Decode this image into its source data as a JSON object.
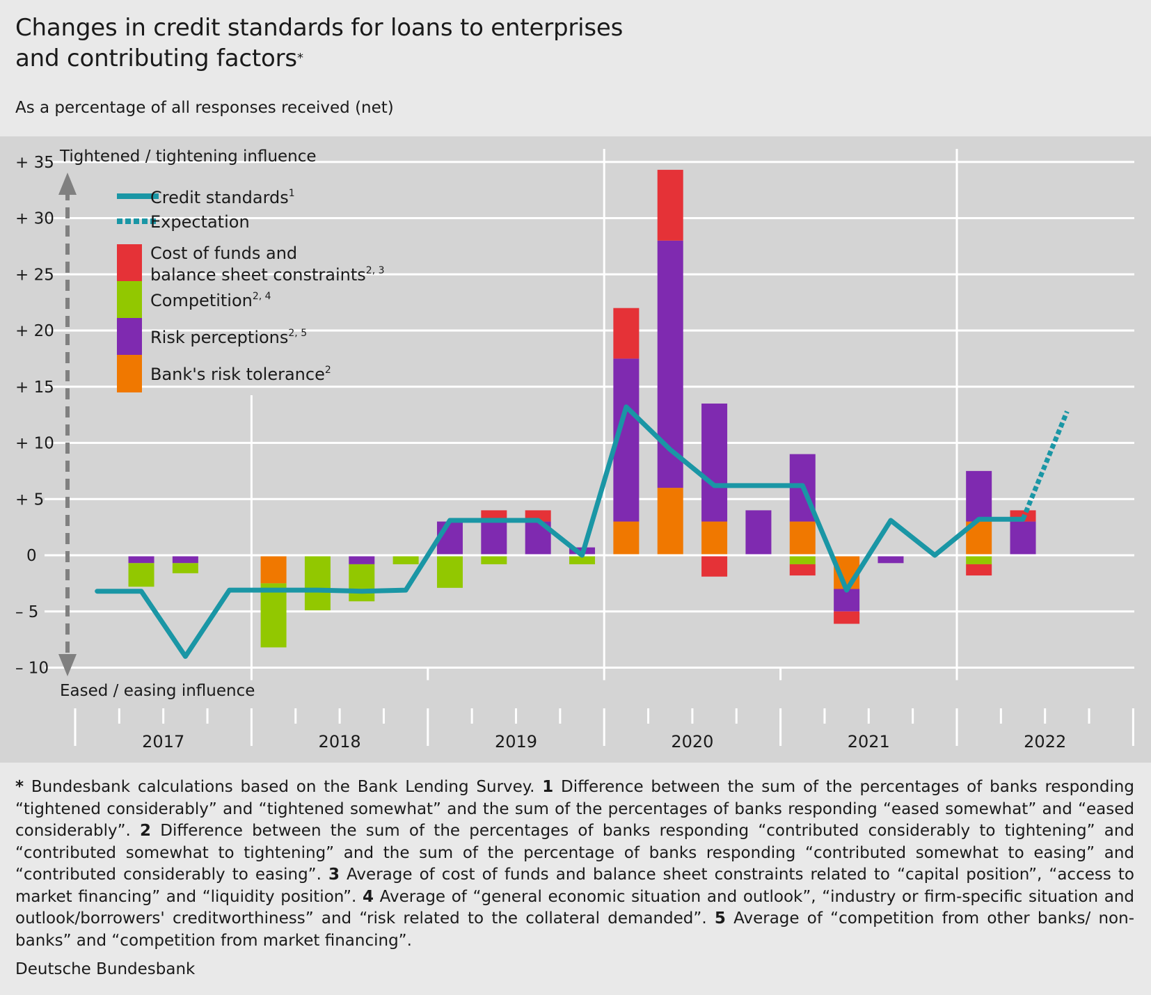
{
  "title_line1": "Changes in credit standards for loans to enterprises",
  "title_line2": "and contributing factors",
  "title_mark": "*",
  "subtitle": "As a percentage of all responses received (net)",
  "annotation_top": "Tightened / tightening influence",
  "annotation_bottom": "Eased / easing influence",
  "colors": {
    "background": "#e9e9e9",
    "plot": "#d4d4d4",
    "grid": "#ffffff",
    "credit": "#1a96a5",
    "cost": "#e53237",
    "competition": "#92c800",
    "risk": "#7f2ab0",
    "tolerance": "#f07800",
    "arrow": "#808080"
  },
  "legend": [
    {
      "key": "credit",
      "label": "Credit standards",
      "sup": "1",
      "style": "line"
    },
    {
      "key": "expectation",
      "label": "Expectation",
      "sup": "",
      "style": "dotted"
    },
    {
      "key": "cost",
      "label": "Cost of funds and",
      "label2": "balance sheet constraints",
      "sup": "2, 3",
      "style": "box"
    },
    {
      "key": "competition",
      "label": "Competition",
      "sup": "2, 4",
      "style": "box"
    },
    {
      "key": "risk",
      "label": "Risk perceptions",
      "sup": "2, 5",
      "style": "box"
    },
    {
      "key": "tolerance",
      "label": "Bank's risk tolerance",
      "sup": "2",
      "style": "box"
    }
  ],
  "chart_data": {
    "type": "bar",
    "stacked": true,
    "ylim": [
      -10,
      35
    ],
    "yticks": [
      {
        "value": 35,
        "label": "+ 35"
      },
      {
        "value": 30,
        "label": "+ 30"
      },
      {
        "value": 25,
        "label": "+ 25"
      },
      {
        "value": 20,
        "label": "+ 20"
      },
      {
        "value": 15,
        "label": "+ 15"
      },
      {
        "value": 10,
        "label": "+ 10"
      },
      {
        "value": 5,
        "label": "+  5"
      },
      {
        "value": 0,
        "label": "0"
      },
      {
        "value": -5,
        "label": "–  5"
      },
      {
        "value": -10,
        "label": "– 10"
      }
    ],
    "years": [
      "2017",
      "2018",
      "2019",
      "2020",
      "2021",
      "2022"
    ],
    "categories": [
      "2017 Q1",
      "2017 Q2",
      "2017 Q3",
      "2017 Q4",
      "2018 Q1",
      "2018 Q2",
      "2018 Q3",
      "2018 Q4",
      "2019 Q1",
      "2019 Q2",
      "2019 Q3",
      "2019 Q4",
      "2020 Q1",
      "2020 Q2",
      "2020 Q3",
      "2020 Q4",
      "2021 Q1",
      "2021 Q2",
      "2021 Q3",
      "2021 Q4",
      "2022 Q1",
      "2022 Q2",
      "2022 Q3",
      "2022 Q4"
    ],
    "series": [
      {
        "key": "tolerance",
        "name": "Bank's risk tolerance",
        "values": [
          0,
          0,
          0,
          0,
          -2.5,
          0,
          0,
          0,
          0,
          0,
          0,
          0,
          3,
          6,
          3,
          0,
          3,
          -3,
          0,
          0,
          3,
          0,
          0,
          0
        ]
      },
      {
        "key": "risk",
        "name": "Risk perceptions",
        "values": [
          0,
          -0.7,
          -0.7,
          0,
          0,
          0,
          -0.8,
          0,
          3,
          3,
          3,
          0.7,
          14.5,
          22,
          10.5,
          4,
          6,
          -2,
          -0.7,
          0,
          4.5,
          3,
          0,
          0
        ]
      },
      {
        "key": "competition",
        "name": "Competition",
        "values": [
          0,
          -2.1,
          -0.9,
          0,
          -5.7,
          -4.9,
          -3.3,
          -0.8,
          -2.9,
          -0.8,
          0,
          -0.8,
          0,
          0,
          0,
          0,
          -0.8,
          0,
          0,
          0,
          -0.8,
          0,
          0,
          0
        ]
      },
      {
        "key": "cost",
        "name": "Cost of funds and balance sheet constraints",
        "values": [
          0,
          0,
          0,
          0,
          0,
          0,
          0,
          0,
          0,
          1,
          1,
          0,
          4.5,
          6.3,
          -1.9,
          0,
          -1,
          -1.1,
          0,
          0,
          -1,
          1,
          0,
          0
        ]
      }
    ],
    "credit_standards": [
      -3.2,
      -3.2,
      -9,
      -3.1,
      -3.1,
      -3.1,
      -3.2,
      -3.1,
      3.1,
      3.1,
      3.1,
      0,
      13.2,
      9.4,
      6.2,
      6.2,
      6.2,
      -3.1,
      3.1,
      0,
      3.2,
      3.2,
      null,
      null
    ],
    "expectation": [
      null,
      null,
      null,
      null,
      null,
      null,
      null,
      null,
      null,
      null,
      null,
      null,
      null,
      null,
      null,
      null,
      null,
      null,
      null,
      null,
      null,
      3.2,
      12.8,
      null
    ]
  },
  "footnotes": [
    {
      "mark": "*",
      "text": " Bundesbank calculations based on the Bank Lending Survey. "
    },
    {
      "mark": "1",
      "text": " Difference between the sum of the percentages of banks responding “tightened considerably” and “tightened somewhat” and the sum of the percentages of banks responding “eased somewhat” and “eased considerably”. "
    },
    {
      "mark": "2",
      "text": " Difference between the sum of the percentages of banks responding “contributed considerably to tightening” and “contributed somewhat to tightening” and the sum of the percentage of banks responding “contributed somewhat to easing” and “contributed considerably to easing”. "
    },
    {
      "mark": "3",
      "text": " Average of cost of funds and balance sheet constraints related to “capital position”, “access to market financing” and “liquidity position”. "
    },
    {
      "mark": "4",
      "text": " Average of “general economic situation and outlook”, “industry or firm-specific situation and outlook/borrowers' creditworthiness” and “risk related to the collateral demanded”. "
    },
    {
      "mark": "5",
      "text": " Average of “competition from other banks/ non-banks” and “competition from market financing”."
    }
  ],
  "source": "Deutsche Bundesbank"
}
